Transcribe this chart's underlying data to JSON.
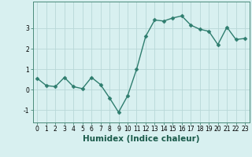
{
  "x": [
    0,
    1,
    2,
    3,
    4,
    5,
    6,
    7,
    8,
    9,
    10,
    11,
    12,
    13,
    14,
    15,
    16,
    17,
    18,
    19,
    20,
    21,
    22,
    23
  ],
  "y": [
    0.55,
    0.2,
    0.15,
    0.6,
    0.15,
    0.05,
    0.6,
    0.25,
    -0.4,
    -1.1,
    -0.3,
    1.0,
    2.6,
    3.4,
    3.35,
    3.5,
    3.6,
    3.15,
    2.95,
    2.85,
    2.2,
    3.05,
    2.45,
    2.5
  ],
  "line_color": "#2e7d6e",
  "marker": "D",
  "marker_size": 2.5,
  "line_width": 1.0,
  "bg_color": "#d8f0f0",
  "grid_color": "#b8d8d8",
  "xlabel": "Humidex (Indice chaleur)",
  "xlabel_fontsize": 7.5,
  "ylim": [
    -1.6,
    4.3
  ],
  "xlim": [
    -0.5,
    23.5
  ],
  "yticks": [
    -1,
    0,
    1,
    2,
    3
  ],
  "xticks": [
    0,
    1,
    2,
    3,
    4,
    5,
    6,
    7,
    8,
    9,
    10,
    11,
    12,
    13,
    14,
    15,
    16,
    17,
    18,
    19,
    20,
    21,
    22,
    23
  ],
  "tick_fontsize": 5.5,
  "spine_color": "#4a8a7a"
}
